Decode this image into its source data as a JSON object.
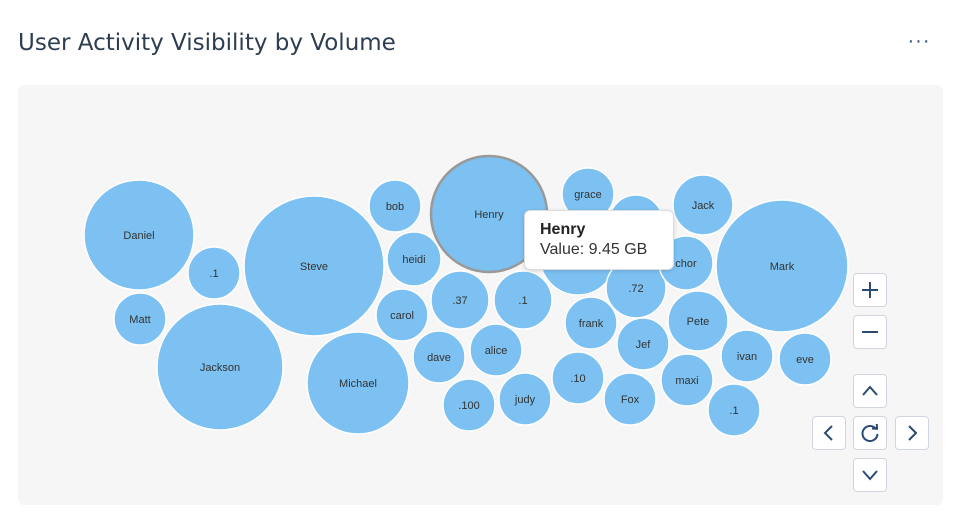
{
  "header": {
    "title": "User Activity Visibility by Volume",
    "more_icon": "ellipsis-icon",
    "more_label": "···"
  },
  "colors": {
    "bubble": "#7cc1f2",
    "bubble_stroke": "#ffffff",
    "hover_stroke": "#999999",
    "label": "#333333"
  },
  "chart_data": {
    "type": "bubble-cluster",
    "title": "User Activity Visibility by Volume",
    "bubbles": [
      {
        "name": "Daniel"
      },
      {
        "name": ".1"
      },
      {
        "name": "Matt"
      },
      {
        "name": "Jackson"
      },
      {
        "name": "Steve"
      },
      {
        "name": "Michael"
      },
      {
        "name": "bob"
      },
      {
        "name": "heidi"
      },
      {
        "name": "carol"
      },
      {
        "name": "dave"
      },
      {
        "name": "Henry",
        "value": "9.45 GB",
        "highlighted": true
      },
      {
        "name": ".37"
      },
      {
        "name": ".1"
      },
      {
        "name": "alice"
      },
      {
        "name": ".100"
      },
      {
        "name": "judy"
      },
      {
        "name": "grace"
      },
      {
        "name": ""
      },
      {
        "name": ""
      },
      {
        "name": ".72"
      },
      {
        "name": "frank"
      },
      {
        "name": "Jef"
      },
      {
        "name": ".10"
      },
      {
        "name": "Fox"
      },
      {
        "name": "Jack"
      },
      {
        "name": "chor"
      },
      {
        "name": "Pete"
      },
      {
        "name": "maxi"
      },
      {
        "name": ".1"
      },
      {
        "name": "Mark"
      },
      {
        "name": "ivan"
      },
      {
        "name": "eve"
      }
    ],
    "tooltip": {
      "name": "Henry",
      "value_label": "Value: 9.45 GB"
    }
  },
  "controls": {
    "zoom_in": "plus-icon",
    "zoom_out": "minus-icon",
    "pan_up": "chevron-up-icon",
    "pan_left": "chevron-left-icon",
    "reset": "refresh-icon",
    "pan_right": "chevron-right-icon",
    "pan_down": "chevron-down-icon"
  }
}
